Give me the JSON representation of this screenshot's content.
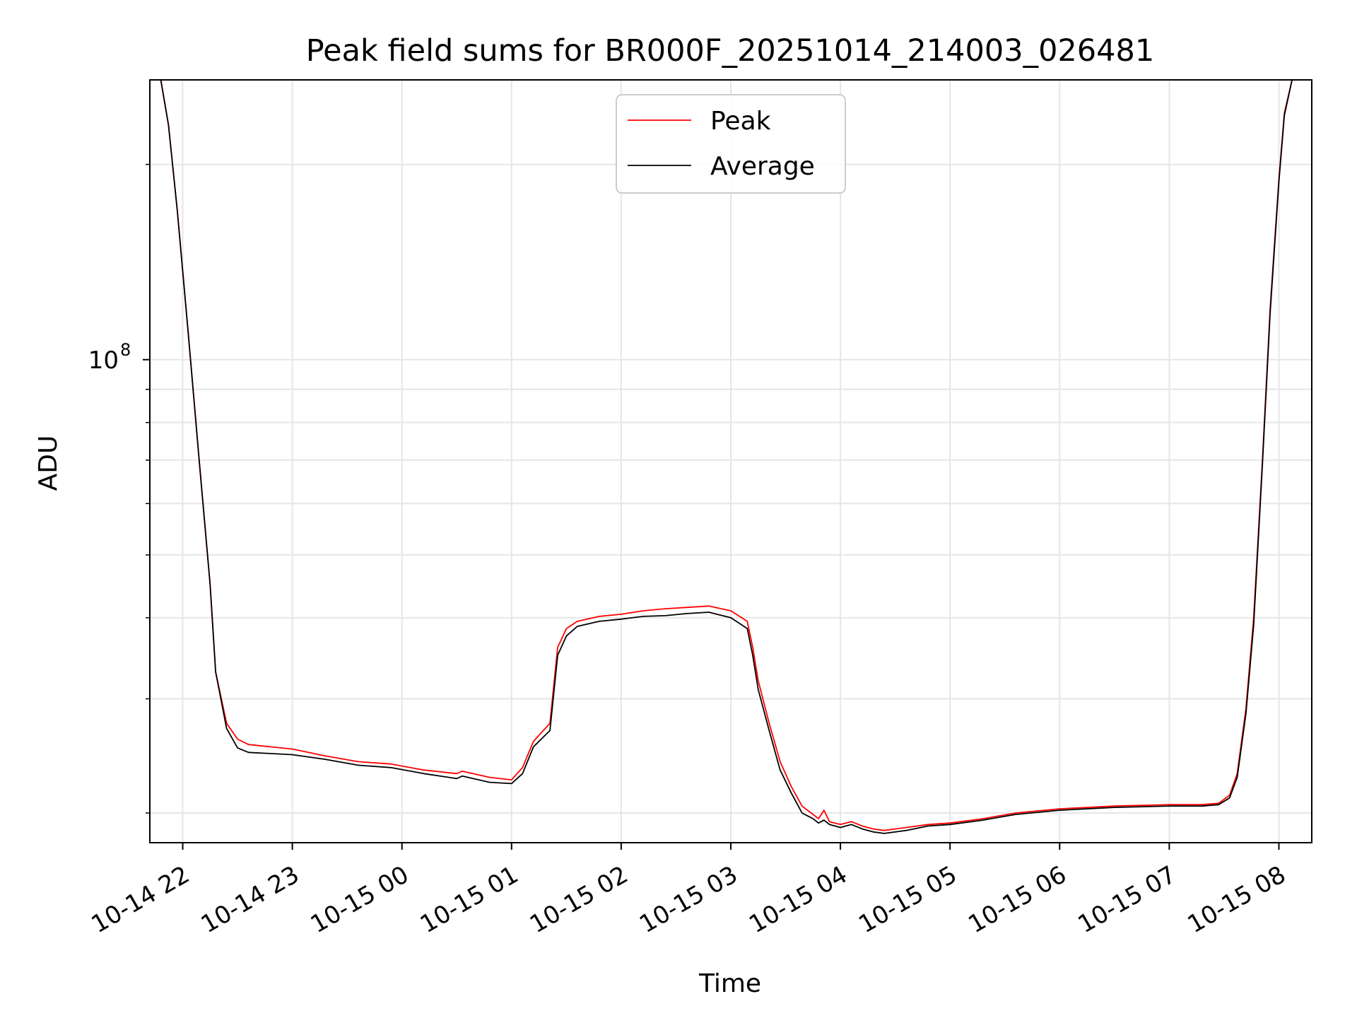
{
  "chart_data": {
    "type": "line",
    "title": "Peak field sums for BR000F_20251014_214003_026481",
    "xlabel": "Time",
    "ylabel": "ADU",
    "yscale": "log",
    "ylim": [
      18000000,
      270000000
    ],
    "xlim_hours": [
      21.7,
      32.3
    ],
    "x_unit": "hours since 2025-10-14 00:00",
    "grid": true,
    "legend_position": "top-center",
    "x_ticks": [
      {
        "hour": 22,
        "label": "10-14 22"
      },
      {
        "hour": 23,
        "label": "10-14 23"
      },
      {
        "hour": 24,
        "label": "10-15 00"
      },
      {
        "hour": 25,
        "label": "10-15 01"
      },
      {
        "hour": 26,
        "label": "10-15 02"
      },
      {
        "hour": 27,
        "label": "10-15 03"
      },
      {
        "hour": 28,
        "label": "10-15 04"
      },
      {
        "hour": 29,
        "label": "10-15 05"
      },
      {
        "hour": 30,
        "label": "10-15 06"
      },
      {
        "hour": 31,
        "label": "10-15 07"
      },
      {
        "hour": 32,
        "label": "10-15 08"
      }
    ],
    "y_major_ticks": [
      {
        "value": 100000000,
        "base": "10",
        "exponent": "8"
      }
    ],
    "y_minor_ticks": [
      20000000,
      30000000,
      40000000,
      50000000,
      60000000,
      70000000,
      80000000,
      90000000,
      200000000
    ],
    "series": [
      {
        "name": "Peak",
        "color": "#ff0000",
        "x": [
          21.75,
          21.8,
          21.87,
          21.95,
          22.05,
          22.15,
          22.25,
          22.3,
          22.4,
          22.5,
          22.6,
          22.8,
          23.0,
          23.3,
          23.6,
          23.9,
          24.2,
          24.5,
          24.55,
          24.8,
          25.0,
          25.1,
          25.2,
          25.35,
          25.42,
          25.5,
          25.6,
          25.8,
          26.0,
          26.2,
          26.4,
          26.6,
          26.8,
          27.0,
          27.15,
          27.2,
          27.25,
          27.35,
          27.45,
          27.55,
          27.65,
          27.75,
          27.8,
          27.85,
          27.9,
          28.0,
          28.1,
          28.2,
          28.3,
          28.4,
          28.6,
          28.8,
          29.0,
          29.3,
          29.6,
          30.0,
          30.5,
          31.0,
          31.3,
          31.45,
          31.55,
          31.62,
          31.7,
          31.77,
          31.85,
          31.92,
          32.0,
          32.05,
          32.12,
          32.2
        ],
        "y": [
          270000000,
          270000000,
          230000000,
          170000000,
          110000000,
          70000000,
          45000000,
          33000000,
          27500000,
          26000000,
          25500000,
          25300000,
          25100000,
          24500000,
          24000000,
          23800000,
          23300000,
          23000000,
          23200000,
          22700000,
          22500000,
          23500000,
          25800000,
          27500000,
          36000000,
          38500000,
          39500000,
          40200000,
          40500000,
          41000000,
          41300000,
          41500000,
          41700000,
          41000000,
          39500000,
          36000000,
          32000000,
          27500000,
          24000000,
          22000000,
          20500000,
          19900000,
          19600000,
          20200000,
          19400000,
          19200000,
          19400000,
          19100000,
          18900000,
          18800000,
          19000000,
          19200000,
          19300000,
          19600000,
          20000000,
          20300000,
          20500000,
          20600000,
          20600000,
          20700000,
          21300000,
          23000000,
          29000000,
          40000000,
          70000000,
          120000000,
          190000000,
          240000000,
          270000000,
          270000000
        ]
      },
      {
        "name": "Average",
        "color": "#000000",
        "x": [
          21.75,
          21.8,
          21.87,
          21.95,
          22.05,
          22.15,
          22.25,
          22.3,
          22.4,
          22.5,
          22.6,
          22.8,
          23.0,
          23.3,
          23.6,
          23.9,
          24.2,
          24.5,
          24.55,
          24.8,
          25.0,
          25.1,
          25.2,
          25.35,
          25.42,
          25.5,
          25.6,
          25.8,
          26.0,
          26.2,
          26.4,
          26.6,
          26.8,
          27.0,
          27.15,
          27.2,
          27.25,
          27.35,
          27.45,
          27.55,
          27.65,
          27.75,
          27.8,
          27.85,
          27.9,
          28.0,
          28.1,
          28.2,
          28.3,
          28.4,
          28.6,
          28.8,
          29.0,
          29.3,
          29.6,
          30.0,
          30.5,
          31.0,
          31.3,
          31.45,
          31.55,
          31.62,
          31.7,
          31.77,
          31.85,
          31.92,
          32.0,
          32.05,
          32.12,
          32.2
        ],
        "y": [
          270000000,
          270000000,
          230000000,
          170000000,
          110000000,
          70000000,
          45000000,
          33000000,
          27000000,
          25200000,
          24800000,
          24700000,
          24600000,
          24200000,
          23700000,
          23500000,
          23000000,
          22600000,
          22800000,
          22300000,
          22200000,
          23000000,
          25300000,
          26800000,
          35000000,
          37500000,
          38800000,
          39500000,
          39800000,
          40200000,
          40300000,
          40600000,
          40800000,
          40000000,
          38500000,
          35000000,
          31000000,
          26800000,
          23300000,
          21500000,
          20000000,
          19600000,
          19300000,
          19500000,
          19200000,
          19000000,
          19200000,
          18900000,
          18700000,
          18600000,
          18800000,
          19100000,
          19200000,
          19500000,
          19900000,
          20200000,
          20400000,
          20500000,
          20500000,
          20600000,
          21100000,
          22700000,
          28500000,
          39000000,
          69000000,
          118000000,
          188000000,
          238000000,
          270000000,
          270000000
        ]
      }
    ]
  }
}
